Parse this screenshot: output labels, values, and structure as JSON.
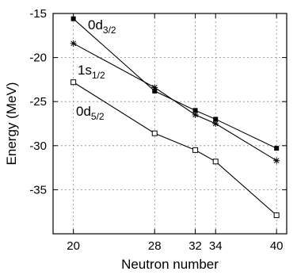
{
  "chart_data": {
    "type": "line",
    "title": "",
    "xlabel": "Neutron number",
    "ylabel": "Energy (MeV)",
    "xlim": [
      18,
      41
    ],
    "ylim": [
      -40,
      -15
    ],
    "xticks": [
      20,
      28,
      32,
      34,
      40
    ],
    "yticks": [
      -15,
      -20,
      -25,
      -30,
      -35
    ],
    "grid": true,
    "x": [
      20,
      28,
      32,
      34,
      40
    ],
    "series": [
      {
        "label_main": "0d",
        "label_sub": "3/2",
        "marker": "filled-square",
        "values": [
          -15.6,
          -23.8,
          -26.0,
          -27.0,
          -30.3
        ]
      },
      {
        "label_main": "1s",
        "label_sub": "1/2",
        "marker": "star",
        "values": [
          -18.4,
          -23.4,
          -26.5,
          -27.5,
          -31.7
        ]
      },
      {
        "label_main": "0d",
        "label_sub": "5/2",
        "marker": "open-square",
        "values": [
          -22.8,
          -28.6,
          -30.5,
          -31.8,
          -37.9
        ]
      }
    ]
  }
}
